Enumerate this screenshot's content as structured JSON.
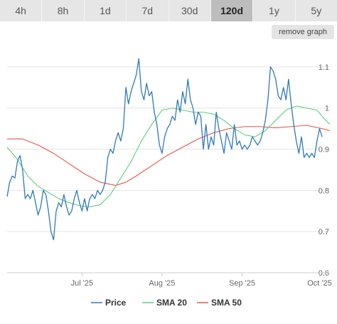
{
  "ranges": [
    {
      "label": "4h"
    },
    {
      "label": "8h"
    },
    {
      "label": "1d"
    },
    {
      "label": "7d"
    },
    {
      "label": "30d"
    },
    {
      "label": "120d",
      "active": true
    },
    {
      "label": "1y"
    },
    {
      "label": "5y"
    }
  ],
  "remove_graph_label": "remove graph",
  "colors": {
    "price": "#2f7ab9",
    "sma20": "#5ecf7a",
    "sma50": "#e8544a",
    "grid": "#e4e4e4"
  },
  "chart_data": {
    "type": "line",
    "x_type": "date",
    "x_start": "2025-06-02",
    "xlim": [
      "2025-06-02",
      "2025-10-05"
    ],
    "ylim": [
      0.6,
      1.15
    ],
    "y_ticks": [
      0.6,
      0.7,
      0.8,
      0.9,
      1.0,
      1.1
    ],
    "y_tick_labels": [
      "0.6",
      "0.7",
      "0.8",
      "0.9",
      "1",
      "1.1"
    ],
    "x_ticks": [
      {
        "date": "2025-07-01",
        "label": "Jul '25"
      },
      {
        "date": "2025-08-01",
        "label": "Aug '25"
      },
      {
        "date": "2025-09-01",
        "label": "Sep '25"
      },
      {
        "date": "2025-10-01",
        "label": "Oct '25"
      }
    ],
    "grid": true,
    "legend_position": "bottom",
    "series": [
      {
        "name": "Price",
        "color": "#2f7ab9",
        "points": [
          [
            "2025-06-02",
            0.785
          ],
          [
            "2025-06-03",
            0.82
          ],
          [
            "2025-06-04",
            0.835
          ],
          [
            "2025-06-05",
            0.83
          ],
          [
            "2025-06-06",
            0.87
          ],
          [
            "2025-06-07",
            0.885
          ],
          [
            "2025-06-08",
            0.85
          ],
          [
            "2025-06-09",
            0.78
          ],
          [
            "2025-06-10",
            0.79
          ],
          [
            "2025-06-11",
            0.78
          ],
          [
            "2025-06-12",
            0.8
          ],
          [
            "2025-06-13",
            0.77
          ],
          [
            "2025-06-14",
            0.74
          ],
          [
            "2025-06-15",
            0.76
          ],
          [
            "2025-06-16",
            0.8
          ],
          [
            "2025-06-17",
            0.79
          ],
          [
            "2025-06-18",
            0.75
          ],
          [
            "2025-06-19",
            0.7
          ],
          [
            "2025-06-20",
            0.68
          ],
          [
            "2025-06-21",
            0.75
          ],
          [
            "2025-06-22",
            0.77
          ],
          [
            "2025-06-23",
            0.76
          ],
          [
            "2025-06-24",
            0.79
          ],
          [
            "2025-06-25",
            0.76
          ],
          [
            "2025-06-26",
            0.74
          ],
          [
            "2025-06-27",
            0.75
          ],
          [
            "2025-06-28",
            0.78
          ],
          [
            "2025-06-29",
            0.8
          ],
          [
            "2025-06-30",
            0.77
          ],
          [
            "2025-07-01",
            0.75
          ],
          [
            "2025-07-02",
            0.78
          ],
          [
            "2025-07-03",
            0.75
          ],
          [
            "2025-07-04",
            0.78
          ],
          [
            "2025-07-05",
            0.79
          ],
          [
            "2025-07-06",
            0.78
          ],
          [
            "2025-07-07",
            0.8
          ],
          [
            "2025-07-08",
            0.79
          ],
          [
            "2025-07-09",
            0.8
          ],
          [
            "2025-07-10",
            0.82
          ],
          [
            "2025-07-11",
            0.88
          ],
          [
            "2025-07-12",
            0.9
          ],
          [
            "2025-07-13",
            0.89
          ],
          [
            "2025-07-14",
            0.92
          ],
          [
            "2025-07-15",
            0.94
          ],
          [
            "2025-07-16",
            0.92
          ],
          [
            "2025-07-17",
            0.95
          ],
          [
            "2025-07-18",
            1.05
          ],
          [
            "2025-07-19",
            1.01
          ],
          [
            "2025-07-20",
            1.04
          ],
          [
            "2025-07-21",
            1.06
          ],
          [
            "2025-07-22",
            1.08
          ],
          [
            "2025-07-23",
            1.12
          ],
          [
            "2025-07-24",
            1.04
          ],
          [
            "2025-07-25",
            1.02
          ],
          [
            "2025-07-26",
            1.06
          ],
          [
            "2025-07-27",
            1.03
          ],
          [
            "2025-07-28",
            1.04
          ],
          [
            "2025-07-29",
            0.99
          ],
          [
            "2025-07-30",
            0.96
          ],
          [
            "2025-07-31",
            0.91
          ],
          [
            "2025-08-01",
            0.89
          ],
          [
            "2025-08-02",
            0.93
          ],
          [
            "2025-08-03",
            0.95
          ],
          [
            "2025-08-04",
            0.96
          ],
          [
            "2025-08-05",
            0.98
          ],
          [
            "2025-08-06",
            0.97
          ],
          [
            "2025-08-07",
            1.02
          ],
          [
            "2025-08-08",
            0.99
          ],
          [
            "2025-08-09",
            1.04
          ],
          [
            "2025-08-10",
            1.01
          ],
          [
            "2025-08-11",
            1.07
          ],
          [
            "2025-08-12",
            1.02
          ],
          [
            "2025-08-13",
            1.0
          ],
          [
            "2025-08-14",
            0.96
          ],
          [
            "2025-08-15",
            0.99
          ],
          [
            "2025-08-16",
            0.98
          ],
          [
            "2025-08-17",
            0.9
          ],
          [
            "2025-08-18",
            0.96
          ],
          [
            "2025-08-19",
            0.9
          ],
          [
            "2025-08-20",
            0.93
          ],
          [
            "2025-08-21",
            0.91
          ],
          [
            "2025-08-22",
            0.99
          ],
          [
            "2025-08-23",
            0.95
          ],
          [
            "2025-08-24",
            0.92
          ],
          [
            "2025-08-25",
            0.89
          ],
          [
            "2025-08-26",
            0.94
          ],
          [
            "2025-08-27",
            0.92
          ],
          [
            "2025-08-28",
            0.9
          ],
          [
            "2025-08-29",
            0.96
          ],
          [
            "2025-08-30",
            0.91
          ],
          [
            "2025-08-31",
            0.92
          ],
          [
            "2025-09-01",
            0.9
          ],
          [
            "2025-09-02",
            0.91
          ],
          [
            "2025-09-03",
            0.9
          ],
          [
            "2025-09-04",
            0.91
          ],
          [
            "2025-09-05",
            0.93
          ],
          [
            "2025-09-06",
            0.92
          ],
          [
            "2025-09-07",
            0.91
          ],
          [
            "2025-09-08",
            0.92
          ],
          [
            "2025-09-09",
            0.94
          ],
          [
            "2025-09-10",
            0.97
          ],
          [
            "2025-09-11",
            1.02
          ],
          [
            "2025-09-12",
            1.1
          ],
          [
            "2025-09-13",
            1.09
          ],
          [
            "2025-09-14",
            1.07
          ],
          [
            "2025-09-15",
            1.03
          ],
          [
            "2025-09-16",
            1.02
          ],
          [
            "2025-09-17",
            1.05
          ],
          [
            "2025-09-18",
            1.02
          ],
          [
            "2025-09-19",
            1.07
          ],
          [
            "2025-09-20",
            1.01
          ],
          [
            "2025-09-21",
            0.96
          ],
          [
            "2025-09-22",
            0.92
          ],
          [
            "2025-09-23",
            0.89
          ],
          [
            "2025-09-24",
            0.93
          ],
          [
            "2025-09-25",
            0.88
          ],
          [
            "2025-09-26",
            0.89
          ],
          [
            "2025-09-27",
            0.88
          ],
          [
            "2025-09-28",
            0.89
          ],
          [
            "2025-09-29",
            0.88
          ],
          [
            "2025-09-30",
            0.92
          ],
          [
            "2025-10-01",
            0.95
          ],
          [
            "2025-10-02",
            0.93
          ]
        ]
      },
      {
        "name": "SMA 20",
        "color": "#5ecf7a",
        "points": [
          [
            "2025-06-02",
            0.905
          ],
          [
            "2025-06-06",
            0.875
          ],
          [
            "2025-06-10",
            0.835
          ],
          [
            "2025-06-14",
            0.81
          ],
          [
            "2025-06-18",
            0.795
          ],
          [
            "2025-06-22",
            0.78
          ],
          [
            "2025-06-26",
            0.77
          ],
          [
            "2025-06-30",
            0.763
          ],
          [
            "2025-07-04",
            0.76
          ],
          [
            "2025-07-08",
            0.765
          ],
          [
            "2025-07-12",
            0.79
          ],
          [
            "2025-07-16",
            0.83
          ],
          [
            "2025-07-20",
            0.87
          ],
          [
            "2025-07-24",
            0.92
          ],
          [
            "2025-07-28",
            0.96
          ],
          [
            "2025-08-01",
            0.995
          ],
          [
            "2025-08-05",
            1.0
          ],
          [
            "2025-08-09",
            0.995
          ],
          [
            "2025-08-13",
            0.99
          ],
          [
            "2025-08-17",
            0.99
          ],
          [
            "2025-08-21",
            0.985
          ],
          [
            "2025-08-25",
            0.97
          ],
          [
            "2025-08-29",
            0.95
          ],
          [
            "2025-09-02",
            0.935
          ],
          [
            "2025-09-06",
            0.93
          ],
          [
            "2025-09-10",
            0.945
          ],
          [
            "2025-09-14",
            0.97
          ],
          [
            "2025-09-18",
            0.995
          ],
          [
            "2025-09-22",
            1.005
          ],
          [
            "2025-09-26",
            1.0
          ],
          [
            "2025-09-30",
            0.995
          ],
          [
            "2025-10-02",
            0.98
          ],
          [
            "2025-10-05",
            0.96
          ]
        ]
      },
      {
        "name": "SMA 50",
        "color": "#e8544a",
        "points": [
          [
            "2025-06-02",
            0.925
          ],
          [
            "2025-06-08",
            0.925
          ],
          [
            "2025-06-14",
            0.91
          ],
          [
            "2025-06-20",
            0.89
          ],
          [
            "2025-06-26",
            0.865
          ],
          [
            "2025-07-02",
            0.84
          ],
          [
            "2025-07-08",
            0.82
          ],
          [
            "2025-07-14",
            0.812
          ],
          [
            "2025-07-18",
            0.82
          ],
          [
            "2025-07-22",
            0.835
          ],
          [
            "2025-07-28",
            0.86
          ],
          [
            "2025-08-03",
            0.885
          ],
          [
            "2025-08-09",
            0.905
          ],
          [
            "2025-08-15",
            0.925
          ],
          [
            "2025-08-21",
            0.94
          ],
          [
            "2025-08-27",
            0.95
          ],
          [
            "2025-09-02",
            0.955
          ],
          [
            "2025-09-08",
            0.955
          ],
          [
            "2025-09-14",
            0.952
          ],
          [
            "2025-09-20",
            0.955
          ],
          [
            "2025-09-26",
            0.958
          ],
          [
            "2025-10-02",
            0.95
          ],
          [
            "2025-10-05",
            0.945
          ]
        ]
      }
    ]
  }
}
